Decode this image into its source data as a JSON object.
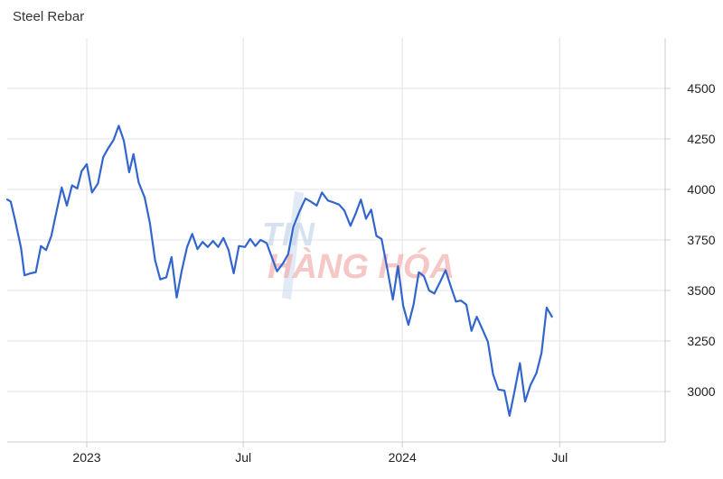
{
  "chart_data": {
    "type": "line",
    "title": "Steel Rebar",
    "xlabel": "",
    "ylabel": "",
    "x_tick_labels": [
      "2023",
      "Jul",
      "2024",
      "Jul"
    ],
    "x_tick_dates": [
      "2023-01-01",
      "2023-07-01",
      "2024-01-01",
      "2024-07-01"
    ],
    "xlim": [
      "2022-10-01",
      "2024-10-31"
    ],
    "y_ticks": [
      3000,
      3250,
      3500,
      3750,
      4000,
      4250,
      4500
    ],
    "ylim": [
      2750,
      4750
    ],
    "y_axis_side": "right",
    "grid": true,
    "line_color": "#3366cc",
    "watermark": {
      "line1": "TIN",
      "line2": "HÀNG HÓA"
    },
    "series": [
      {
        "points": [
          [
            "2022-10-01",
            3950
          ],
          [
            "2022-10-05",
            3940
          ],
          [
            "2022-10-10",
            3850
          ],
          [
            "2022-10-17",
            3710
          ],
          [
            "2022-10-21",
            3575
          ],
          [
            "2022-10-28",
            3585
          ],
          [
            "2022-11-03",
            3590
          ],
          [
            "2022-11-09",
            3720
          ],
          [
            "2022-11-15",
            3700
          ],
          [
            "2022-11-21",
            3770
          ],
          [
            "2022-11-27",
            3890
          ],
          [
            "2022-12-03",
            4010
          ],
          [
            "2022-12-09",
            3920
          ],
          [
            "2022-12-15",
            4020
          ],
          [
            "2022-12-21",
            4005
          ],
          [
            "2022-12-26",
            4090
          ],
          [
            "2023-01-01",
            4125
          ],
          [
            "2023-01-07",
            3985
          ],
          [
            "2023-01-14",
            4030
          ],
          [
            "2023-01-20",
            4160
          ],
          [
            "2023-01-26",
            4205
          ],
          [
            "2023-02-01",
            4245
          ],
          [
            "2023-02-07",
            4315
          ],
          [
            "2023-02-13",
            4240
          ],
          [
            "2023-02-19",
            4085
          ],
          [
            "2023-02-24",
            4175
          ],
          [
            "2023-03-02",
            4035
          ],
          [
            "2023-03-09",
            3960
          ],
          [
            "2023-03-15",
            3835
          ],
          [
            "2023-03-21",
            3650
          ],
          [
            "2023-03-27",
            3555
          ],
          [
            "2023-04-03",
            3565
          ],
          [
            "2023-04-09",
            3665
          ],
          [
            "2023-04-15",
            3465
          ],
          [
            "2023-04-21",
            3600
          ],
          [
            "2023-04-27",
            3715
          ],
          [
            "2023-05-03",
            3780
          ],
          [
            "2023-05-09",
            3705
          ],
          [
            "2023-05-15",
            3740
          ],
          [
            "2023-05-21",
            3715
          ],
          [
            "2023-05-27",
            3745
          ],
          [
            "2023-06-02",
            3715
          ],
          [
            "2023-06-08",
            3760
          ],
          [
            "2023-06-14",
            3700
          ],
          [
            "2023-06-20",
            3585
          ],
          [
            "2023-06-26",
            3720
          ],
          [
            "2023-07-03",
            3715
          ],
          [
            "2023-07-09",
            3755
          ],
          [
            "2023-07-15",
            3720
          ],
          [
            "2023-07-21",
            3750
          ],
          [
            "2023-07-28",
            3735
          ],
          [
            "2023-08-03",
            3665
          ],
          [
            "2023-08-09",
            3595
          ],
          [
            "2023-08-16",
            3635
          ],
          [
            "2023-08-22",
            3680
          ],
          [
            "2023-08-28",
            3815
          ],
          [
            "2023-09-04",
            3890
          ],
          [
            "2023-09-11",
            3955
          ],
          [
            "2023-09-17",
            3940
          ],
          [
            "2023-09-24",
            3920
          ],
          [
            "2023-09-30",
            3985
          ],
          [
            "2023-10-07",
            3945
          ],
          [
            "2023-10-14",
            3935
          ],
          [
            "2023-10-20",
            3925
          ],
          [
            "2023-10-26",
            3895
          ],
          [
            "2023-11-02",
            3820
          ],
          [
            "2023-11-08",
            3880
          ],
          [
            "2023-11-14",
            3950
          ],
          [
            "2023-11-20",
            3855
          ],
          [
            "2023-11-26",
            3900
          ],
          [
            "2023-12-02",
            3770
          ],
          [
            "2023-12-08",
            3755
          ],
          [
            "2023-12-14",
            3620
          ],
          [
            "2023-12-21",
            3455
          ],
          [
            "2023-12-27",
            3620
          ],
          [
            "2024-01-02",
            3425
          ],
          [
            "2024-01-08",
            3330
          ],
          [
            "2024-01-14",
            3430
          ],
          [
            "2024-01-20",
            3590
          ],
          [
            "2024-01-26",
            3570
          ],
          [
            "2024-02-01",
            3500
          ],
          [
            "2024-02-07",
            3485
          ],
          [
            "2024-02-14",
            3545
          ],
          [
            "2024-02-20",
            3600
          ],
          [
            "2024-02-26",
            3520
          ],
          [
            "2024-03-03",
            3445
          ],
          [
            "2024-03-09",
            3450
          ],
          [
            "2024-03-15",
            3430
          ],
          [
            "2024-03-21",
            3300
          ],
          [
            "2024-03-27",
            3370
          ],
          [
            "2024-04-03",
            3305
          ],
          [
            "2024-04-09",
            3245
          ],
          [
            "2024-04-15",
            3085
          ],
          [
            "2024-04-21",
            3010
          ],
          [
            "2024-04-28",
            3005
          ],
          [
            "2024-05-04",
            2880
          ],
          [
            "2024-05-10",
            3005
          ],
          [
            "2024-05-16",
            3140
          ],
          [
            "2024-05-22",
            2950
          ],
          [
            "2024-05-28",
            3030
          ],
          [
            "2024-06-04",
            3090
          ],
          [
            "2024-06-10",
            3190
          ],
          [
            "2024-06-16",
            3415
          ],
          [
            "2024-06-22",
            3370
          ]
        ]
      }
    ]
  }
}
